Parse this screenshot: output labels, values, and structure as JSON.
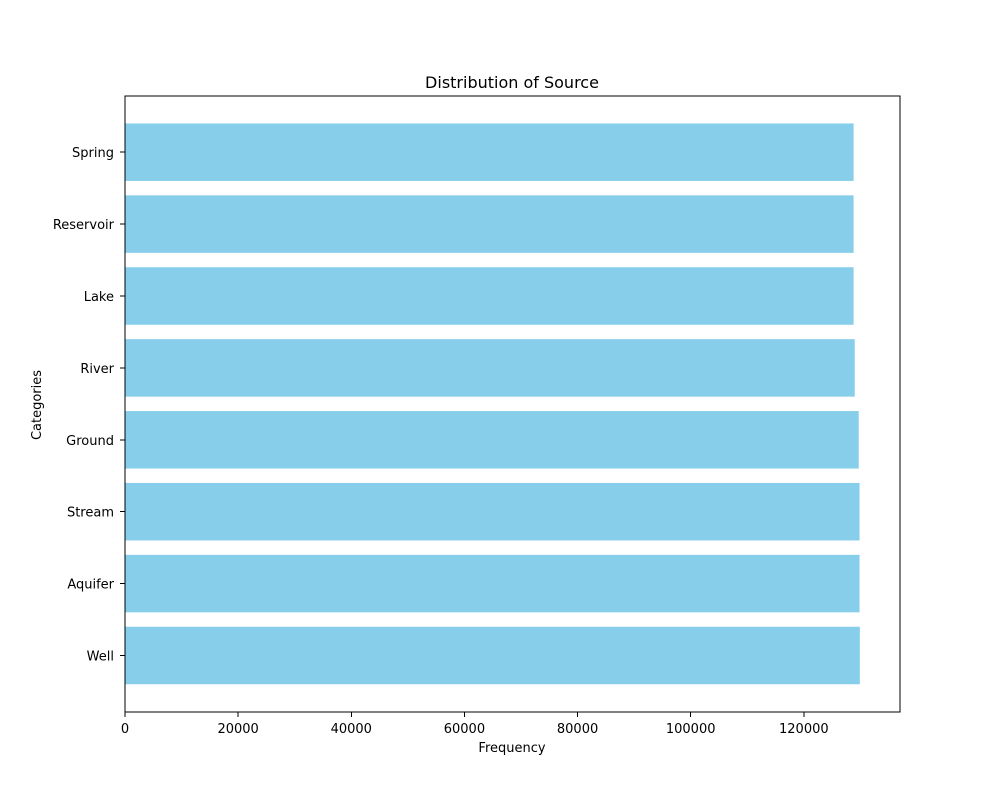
{
  "chart_data": {
    "type": "bar",
    "orientation": "horizontal",
    "title": "Distribution of Source",
    "xlabel": "Frequency",
    "ylabel": "Categories",
    "categories": [
      "Well",
      "Aquifer",
      "Stream",
      "Ground",
      "River",
      "Lake",
      "Reservoir",
      "Spring"
    ],
    "values": [
      129900,
      129850,
      129850,
      129700,
      129000,
      128800,
      128800,
      128800
    ],
    "xlim": [
      0,
      137000
    ],
    "xticks": [
      0,
      20000,
      40000,
      60000,
      80000,
      100000,
      120000
    ],
    "xtick_labels": [
      "0",
      "20000",
      "40000",
      "60000",
      "80000",
      "100000",
      "120000"
    ],
    "bar_color": "#87CEEB",
    "grid": false,
    "legend": "none"
  }
}
